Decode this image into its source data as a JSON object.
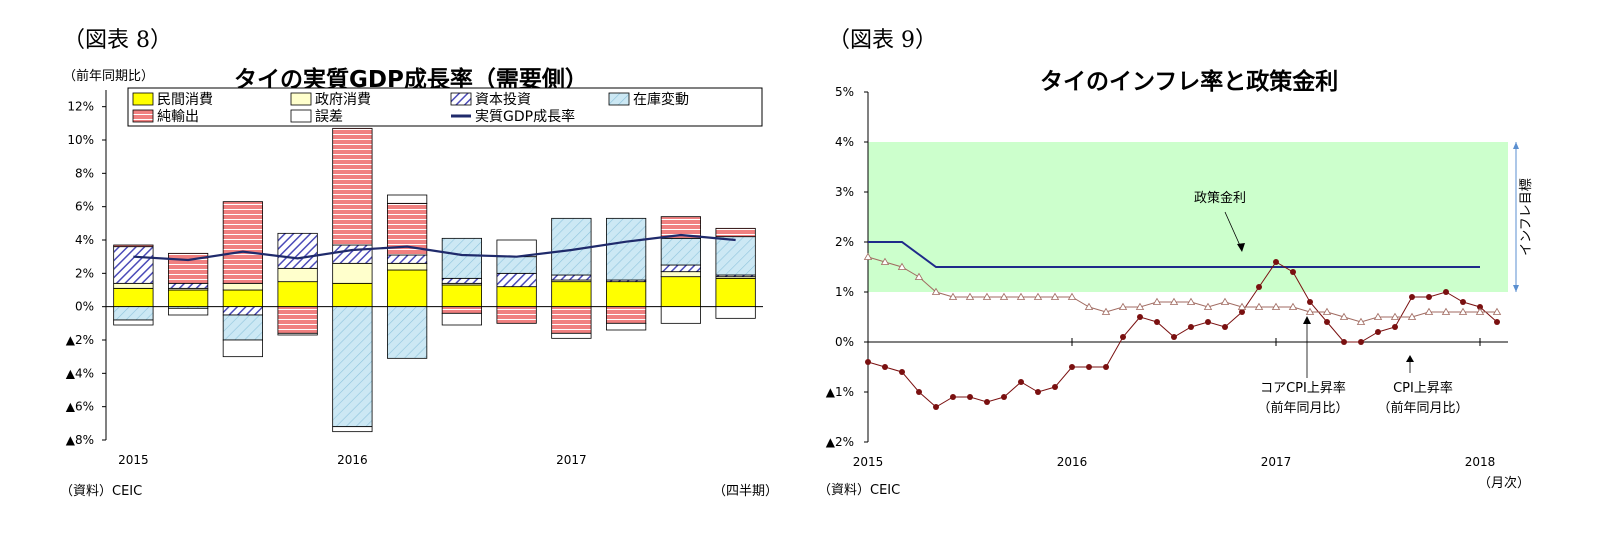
{
  "left": {
    "fig_label": "（図表 8）",
    "unit": "（前年同期比）",
    "source": "（資料）CEIC",
    "x_unit": "（四半期）",
    "chart_data": {
      "type": "bar",
      "title": "タイの実質GDP成長率（需要側）",
      "ylim": [
        -8,
        13
      ],
      "y_ticks": [
        "12%",
        "10%",
        "8%",
        "6%",
        "4%",
        "2%",
        "0%",
        "▲2%",
        "▲4%",
        "▲6%",
        "▲8%"
      ],
      "x_tick_labels": [
        "2015",
        "2016",
        "2017"
      ],
      "categories": [
        "2015Q1",
        "2015Q2",
        "2015Q3",
        "2015Q4",
        "2016Q1",
        "2016Q2",
        "2016Q3",
        "2016Q4",
        "2017Q1",
        "2017Q2",
        "2017Q3",
        "2017Q4"
      ],
      "series": [
        {
          "name": "民間消費",
          "color": "#ffff00",
          "values": [
            1.1,
            1.0,
            1.0,
            1.5,
            1.4,
            2.2,
            1.3,
            1.2,
            1.5,
            1.5,
            1.8,
            1.7
          ]
        },
        {
          "name": "政府消費",
          "color": "#ffffcc",
          "values": [
            0.3,
            0.1,
            0.4,
            0.8,
            1.2,
            0.4,
            0.1,
            0.0,
            0.1,
            0.0,
            0.3,
            0.1
          ]
        },
        {
          "name": "資本投資",
          "color": "#6666cc",
          "values": [
            2.2,
            0.3,
            -0.5,
            2.1,
            1.1,
            0.5,
            0.3,
            0.8,
            0.3,
            0.1,
            0.4,
            0.1
          ]
        },
        {
          "name": "在庫変動",
          "color": "#cce8f4",
          "values": [
            -0.8,
            -0.1,
            -1.5,
            0.0,
            -7.2,
            -3.1,
            2.4,
            1.0,
            3.4,
            3.7,
            1.6,
            2.3
          ]
        },
        {
          "name": "純輸出",
          "color": "#f08080",
          "values": [
            0.1,
            1.8,
            4.9,
            -1.6,
            7.0,
            3.1,
            -0.4,
            -1.0,
            -1.6,
            -1.0,
            1.3,
            0.5
          ]
        },
        {
          "name": "誤差",
          "color": "#ffffff",
          "values": [
            -0.3,
            -0.4,
            -1.0,
            -0.1,
            -0.3,
            0.5,
            -0.7,
            1.0,
            -0.3,
            -0.4,
            -1.0,
            -0.7
          ]
        }
      ],
      "line": {
        "name": "実質GDP成長率",
        "color": "#1f2a6b",
        "values": [
          3.0,
          2.8,
          3.3,
          2.9,
          3.4,
          3.6,
          3.1,
          3.0,
          3.4,
          3.9,
          4.3,
          4.0
        ]
      }
    }
  },
  "right": {
    "fig_label": "（図表 9）",
    "source": "（資料）CEIC",
    "x_unit": "（月次）",
    "chart_data": {
      "type": "line",
      "title": "タイのインフレ率と政策金利",
      "ylim": [
        -2,
        5
      ],
      "y_ticks": [
        "5%",
        "4%",
        "3%",
        "2%",
        "1%",
        "0%",
        "▲1%",
        "▲2%"
      ],
      "x_tick_labels": [
        "2015",
        "2016",
        "2017",
        "2018"
      ],
      "band": {
        "from": 1,
        "to": 4,
        "color": "#ccffcc",
        "label": "インフレ目標"
      },
      "series": [
        {
          "name": "政策金利",
          "color": "#1f2a8a",
          "values": [
            2.0,
            2.0,
            2.0,
            1.75,
            1.5,
            1.5,
            1.5,
            1.5,
            1.5,
            1.5,
            1.5,
            1.5,
            1.5,
            1.5,
            1.5,
            1.5,
            1.5,
            1.5,
            1.5,
            1.5,
            1.5,
            1.5,
            1.5,
            1.5,
            1.5,
            1.5,
            1.5,
            1.5,
            1.5,
            1.5,
            1.5,
            1.5,
            1.5,
            1.5,
            1.5,
            1.5,
            1.5
          ]
        },
        {
          "name": "CPI上昇率",
          "color": "#7a1010",
          "marker": "circle",
          "values": [
            -0.4,
            -0.5,
            -0.6,
            -1.0,
            -1.3,
            -1.1,
            -1.1,
            -1.2,
            -1.1,
            -0.8,
            -1.0,
            -0.9,
            -0.5,
            -0.5,
            -0.5,
            0.1,
            0.5,
            0.4,
            0.1,
            0.3,
            0.4,
            0.3,
            0.6,
            1.1,
            1.6,
            1.4,
            0.8,
            0.4,
            0.0,
            0.0,
            0.2,
            0.3,
            0.9,
            0.9,
            1.0,
            0.8,
            0.7,
            0.4
          ]
        },
        {
          "name": "コアCPI上昇率",
          "color": "#a06a60",
          "marker": "triangle",
          "values": [
            1.7,
            1.6,
            1.5,
            1.3,
            1.0,
            0.9,
            0.9,
            0.9,
            0.9,
            0.9,
            0.9,
            0.9,
            0.9,
            0.7,
            0.6,
            0.7,
            0.7,
            0.8,
            0.8,
            0.8,
            0.7,
            0.8,
            0.7,
            0.7,
            0.7,
            0.7,
            0.6,
            0.6,
            0.5,
            0.4,
            0.5,
            0.5,
            0.5,
            0.6,
            0.6,
            0.6,
            0.6,
            0.6
          ]
        }
      ],
      "annotations": {
        "policy": "政策金利",
        "core_l1": "コアCPI上昇率",
        "core_l2": "（前年同月比）",
        "cpi_l1": "CPI上昇率",
        "cpi_l2": "（前年同月比）"
      }
    }
  }
}
